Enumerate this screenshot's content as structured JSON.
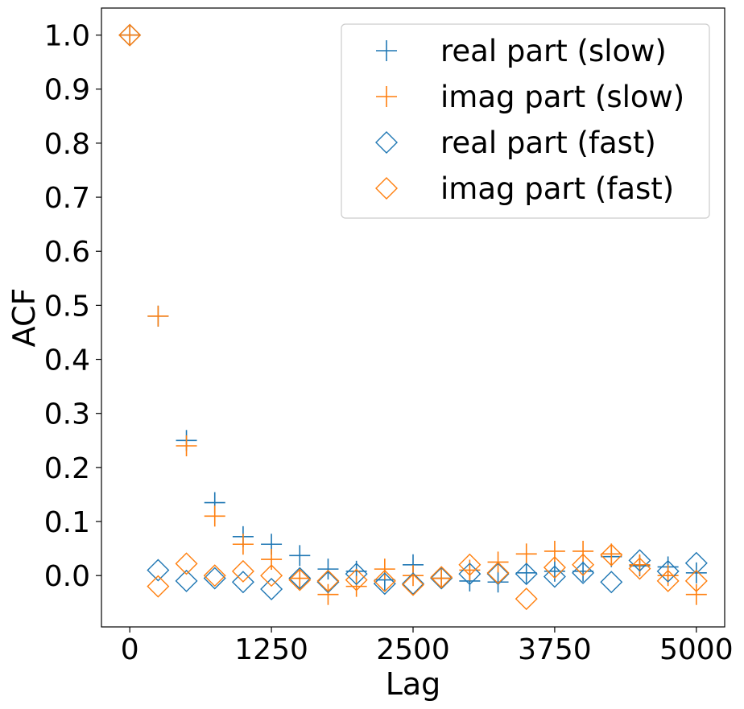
{
  "chart_data": {
    "type": "scatter",
    "title": "",
    "xlabel": "Lag",
    "ylabel": "ACF",
    "xlim": [
      -250,
      5250
    ],
    "ylim": [
      -0.095,
      1.05
    ],
    "xticks": [
      0,
      1250,
      2500,
      3750,
      5000
    ],
    "yticks": [
      0.0,
      0.1,
      0.2,
      0.3,
      0.4,
      0.5,
      0.6,
      0.7,
      0.8,
      0.9,
      1.0
    ],
    "xtick_labels": [
      "0",
      "1250",
      "2500",
      "3750",
      "5000"
    ],
    "ytick_labels": [
      "0.0",
      "0.1",
      "0.2",
      "0.3",
      "0.4",
      "0.5",
      "0.6",
      "0.7",
      "0.8",
      "0.9",
      "1.0"
    ],
    "grid": false,
    "legend_position": "top-right",
    "x": [
      0,
      250,
      500,
      750,
      1000,
      1250,
      1500,
      1750,
      2000,
      2250,
      2500,
      2750,
      3000,
      3250,
      3500,
      3750,
      4000,
      4250,
      4500,
      4750,
      5000
    ],
    "series": [
      {
        "name": "real part (slow)",
        "marker": "plus",
        "color": "#1f77b4",
        "values": [
          1.0,
          0.48,
          0.25,
          0.135,
          0.072,
          0.058,
          0.037,
          0.012,
          0.008,
          -0.008,
          0.02,
          -0.005,
          -0.01,
          -0.012,
          0.005,
          0.008,
          0.008,
          0.035,
          0.018,
          0.016,
          0.005
        ]
      },
      {
        "name": "imag part (slow)",
        "marker": "plus",
        "color": "#ff7f0e",
        "values": [
          1.0,
          0.48,
          0.24,
          0.11,
          0.058,
          0.03,
          -0.005,
          -0.035,
          -0.02,
          0.012,
          0.0,
          -0.005,
          0.01,
          0.025,
          0.04,
          0.045,
          0.045,
          0.04,
          0.02,
          0.0,
          -0.035
        ]
      },
      {
        "name": "real part (fast)",
        "marker": "diamond",
        "color": "#1f77b4",
        "values": [
          1.0,
          0.01,
          -0.01,
          -0.005,
          -0.012,
          -0.025,
          -0.005,
          -0.012,
          0.003,
          -0.015,
          -0.015,
          -0.005,
          0.003,
          0.003,
          0.003,
          -0.002,
          0.005,
          -0.012,
          0.028,
          0.008,
          0.023
        ]
      },
      {
        "name": "imag part (fast)",
        "marker": "diamond",
        "color": "#ff7f0e",
        "values": [
          1.0,
          -0.02,
          0.022,
          0.0,
          0.008,
          0.0,
          -0.008,
          -0.01,
          -0.008,
          -0.01,
          -0.017,
          -0.003,
          0.02,
          0.005,
          -0.043,
          0.015,
          0.02,
          0.038,
          0.013,
          -0.01,
          -0.01
        ]
      }
    ]
  }
}
